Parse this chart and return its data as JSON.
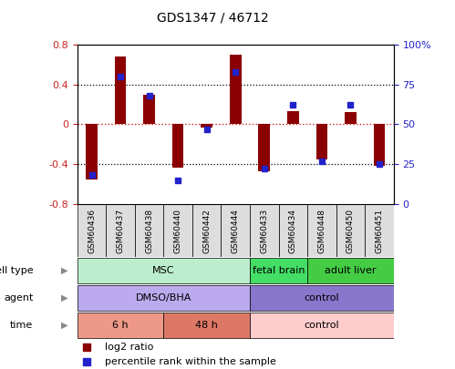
{
  "title": "GDS1347 / 46712",
  "samples": [
    "GSM60436",
    "GSM60437",
    "GSM60438",
    "GSM60440",
    "GSM60442",
    "GSM60444",
    "GSM60433",
    "GSM60434",
    "GSM60448",
    "GSM60450",
    "GSM60451"
  ],
  "log2_ratio": [
    -0.55,
    0.68,
    0.3,
    -0.43,
    -0.03,
    0.7,
    -0.47,
    0.13,
    -0.35,
    0.12,
    -0.42
  ],
  "percentile_rank": [
    18,
    80,
    68,
    15,
    47,
    83,
    22,
    62,
    27,
    62,
    25
  ],
  "ylim_left": [
    -0.8,
    0.8
  ],
  "ylim_right": [
    0,
    100
  ],
  "bar_color": "#8B0000",
  "dot_color": "#2222CC",
  "zero_line_color": "#CC2222",
  "cell_type_groups": [
    {
      "label": "MSC",
      "start": 0,
      "end": 6,
      "color": "#BBEECC"
    },
    {
      "label": "fetal brain",
      "start": 6,
      "end": 8,
      "color": "#44DD66"
    },
    {
      "label": "adult liver",
      "start": 8,
      "end": 11,
      "color": "#44CC44"
    }
  ],
  "agent_groups": [
    {
      "label": "DMSO/BHA",
      "start": 0,
      "end": 6,
      "color": "#BBAAEE"
    },
    {
      "label": "control",
      "start": 6,
      "end": 11,
      "color": "#8877CC"
    }
  ],
  "time_groups": [
    {
      "label": "6 h",
      "start": 0,
      "end": 3,
      "color": "#EE9988"
    },
    {
      "label": "48 h",
      "start": 3,
      "end": 6,
      "color": "#DD7766"
    },
    {
      "label": "control",
      "start": 6,
      "end": 11,
      "color": "#FFCCCC"
    }
  ],
  "legend_items": [
    {
      "label": "log2 ratio",
      "color": "#8B0000",
      "marker": "s"
    },
    {
      "label": "percentile rank within the sample",
      "color": "#2222CC",
      "marker": "s"
    }
  ],
  "background_color": "#FFFFFF",
  "xlabel_bg": "#DDDDDD"
}
